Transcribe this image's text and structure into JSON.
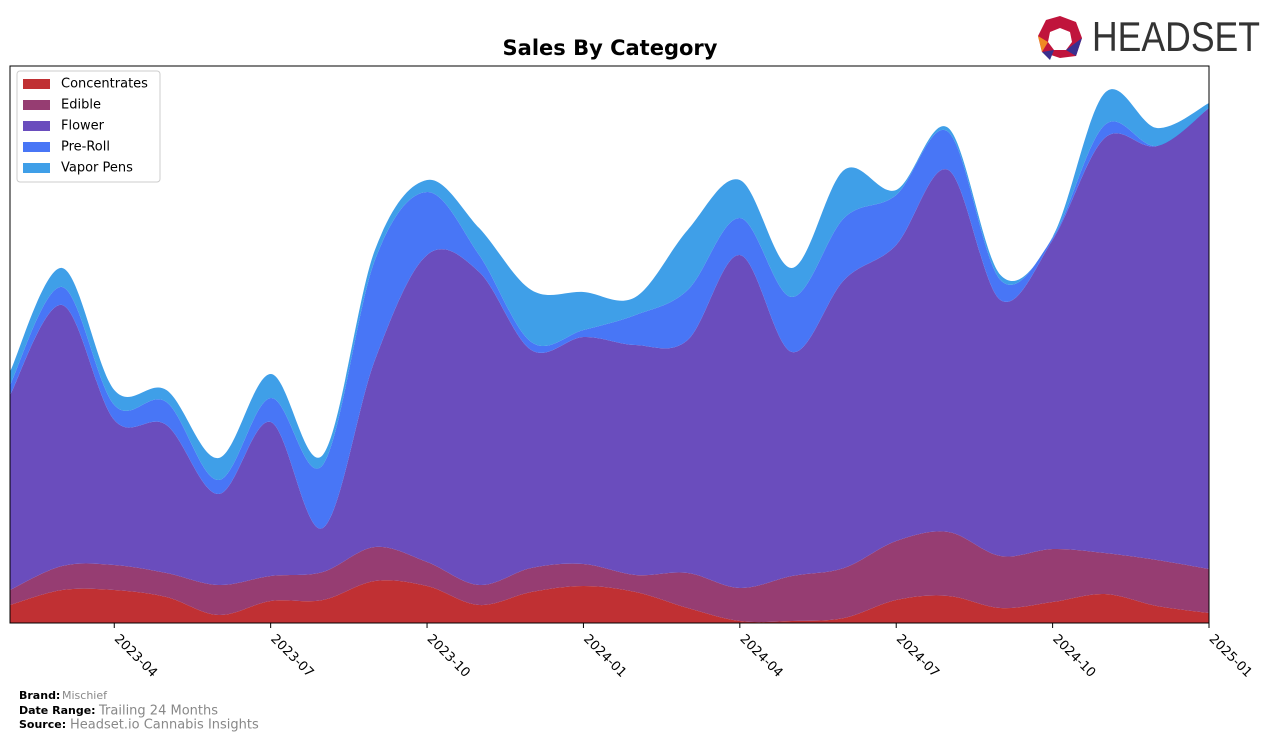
{
  "chart_data": {
    "type": "stacked-area",
    "title": "Sales By Category",
    "x": [
      "2023-02",
      "2023-03",
      "2023-04",
      "2023-05",
      "2023-06",
      "2023-07",
      "2023-08",
      "2023-09",
      "2023-10",
      "2023-11",
      "2023-12",
      "2024-01",
      "2024-02",
      "2024-03",
      "2024-04",
      "2024-05",
      "2024-06",
      "2024-07",
      "2024-08",
      "2024-09",
      "2024-10",
      "2024-11",
      "2024-12",
      "2025-01"
    ],
    "xlim": [
      "2023-02",
      "2025-01"
    ],
    "xticks": [
      "2023-04",
      "2023-07",
      "2023-10",
      "2024-01",
      "2024-04",
      "2024-07",
      "2024-10",
      "2025-01"
    ],
    "ylim": [
      0,
      557
    ],
    "series": [
      {
        "name": "Concentrates",
        "color": "#c03033",
        "values": [
          18,
          33,
          33,
          26,
          8,
          22,
          23,
          42,
          37,
          18,
          31,
          37,
          31,
          15,
          2,
          2,
          5,
          23,
          27,
          15,
          21,
          29,
          17,
          10
        ]
      },
      {
        "name": "Edible",
        "color": "#963d72",
        "values": [
          15,
          24,
          25,
          24,
          30,
          25,
          28,
          34,
          24,
          20,
          24,
          22,
          17,
          35,
          33,
          45,
          50,
          59,
          64,
          52,
          53,
          41,
          46,
          44
        ]
      },
      {
        "name": "Flower",
        "color": "#6a4dbd",
        "values": [
          195,
          261,
          145,
          148,
          91,
          154,
          44,
          187,
          307,
          313,
          218,
          227,
          230,
          233,
          333,
          224,
          288,
          296,
          362,
          256,
          309,
          415,
          414,
          461
        ]
      },
      {
        "name": "Pre-Roll",
        "color": "#4876f6",
        "values": [
          10,
          18,
          15,
          23,
          14,
          24,
          63,
          100,
          63,
          17,
          8,
          7,
          30,
          50,
          37,
          55,
          62,
          50,
          38,
          20,
          2,
          13,
          0,
          0
        ]
      },
      {
        "name": "Vapor Pens",
        "color": "#3f9fe8",
        "values": [
          13,
          19,
          15,
          12,
          22,
          24,
          10,
          10,
          12,
          27,
          52,
          38,
          18,
          60,
          38,
          29,
          48,
          5,
          4,
          5,
          1,
          32,
          18,
          5
        ]
      }
    ],
    "legend": "upper left"
  },
  "footer": {
    "brand_label": "Brand:",
    "brand": "Mischief",
    "date_range_label": "Date Range:",
    "date_range": "Trailing 24 Months",
    "source_label": "Source:",
    "source": "Headset.io Cannabis Insights"
  },
  "logo": "HEADSET"
}
